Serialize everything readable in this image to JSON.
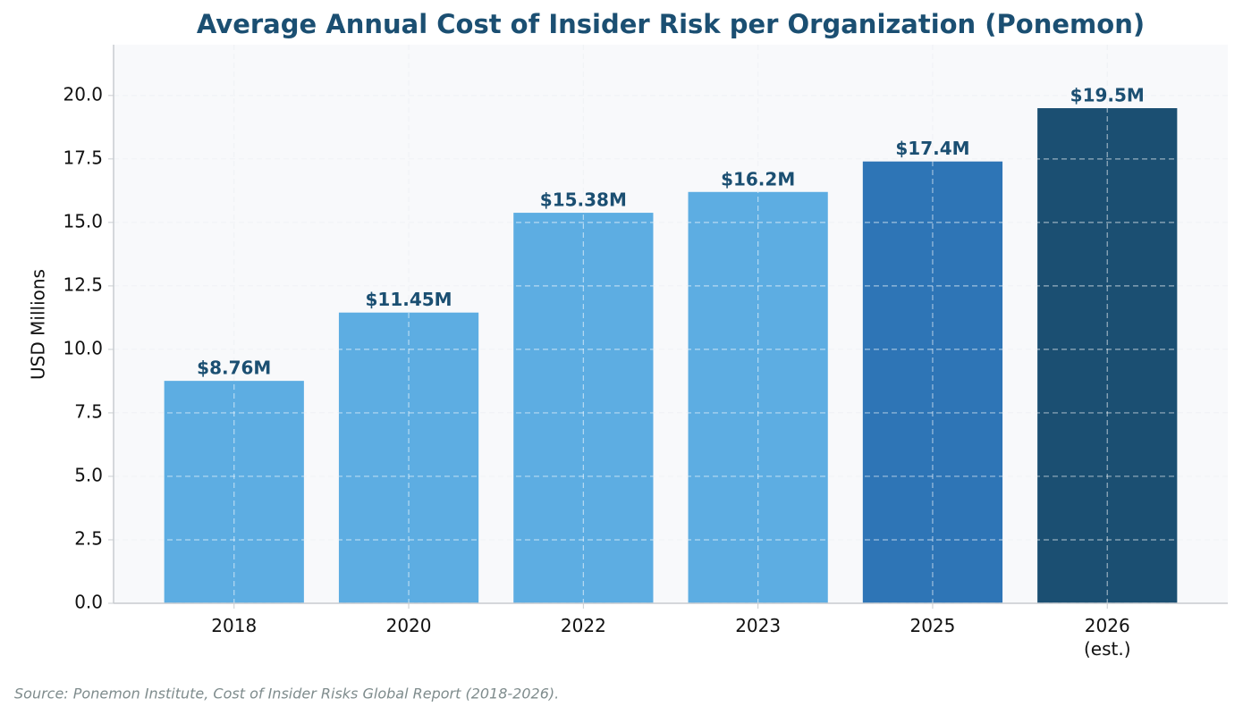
{
  "chart_data": {
    "type": "bar",
    "title": "Average Annual Cost of Insider Risk per Organization (Ponemon)",
    "y_label": "USD Millions",
    "categories": [
      "2018",
      "2020",
      "2022",
      "2023",
      "2025",
      "2026\n(est.)"
    ],
    "values": [
      8.76,
      11.45,
      15.38,
      16.2,
      17.4,
      19.5
    ],
    "value_labels": [
      "$8.76M",
      "$11.45M",
      "$15.38M",
      "$16.2M",
      "$17.4M",
      "$19.5M"
    ],
    "colors": [
      "#5dade2",
      "#5dade2",
      "#5dade2",
      "#5dade2",
      "#2e75b6",
      "#1b4f72"
    ],
    "ylim": [
      0,
      22
    ],
    "yticks": [
      {
        "value": 0,
        "label": "0.0"
      },
      2.5,
      {
        "value": 5,
        "label": "5.0"
      },
      7.5,
      {
        "value": 10,
        "label": "10.0"
      },
      12.5,
      {
        "value": 15,
        "label": "15.0"
      },
      17.5,
      {
        "value": 20,
        "label": "20.0"
      }
    ],
    "grid": true,
    "source": "Source: Ponemon Institute, Cost of Insider Risks Global Report (2018-2026)."
  }
}
